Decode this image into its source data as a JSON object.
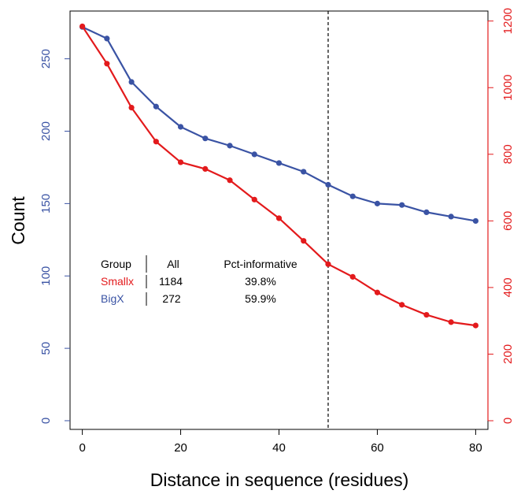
{
  "colors": {
    "left_axis": "#3a53a4",
    "right_axis": "#e31a1c",
    "bigx_series": "#3a53a4",
    "smallx_series": "#e31a1c",
    "frame": "#000000",
    "reference_line": "#000000"
  },
  "chart_data": {
    "type": "line",
    "title": "",
    "xlabel": "Distance in sequence (residues)",
    "ylabel": "Count",
    "grid": false,
    "x": [
      0,
      5,
      10,
      15,
      20,
      25,
      30,
      35,
      40,
      45,
      50,
      55,
      60,
      65,
      70,
      75,
      80
    ],
    "xlim": [
      -2.5,
      82.5
    ],
    "xticks": [
      0,
      20,
      40,
      60,
      80
    ],
    "ylim_left": [
      -6,
      283
    ],
    "yticks_left": [
      0,
      50,
      100,
      150,
      200,
      250
    ],
    "ylim_right": [
      -26,
      1230
    ],
    "yticks_right": [
      0,
      200,
      400,
      600,
      800,
      1000,
      1200
    ],
    "reference_line_x": 50,
    "series": [
      {
        "name": "BigX",
        "axis": "left",
        "values": [
          272,
          264,
          234,
          217,
          203,
          195,
          190,
          184,
          178,
          172,
          163,
          155,
          150,
          149,
          144,
          141,
          138
        ]
      },
      {
        "name": "Smallx",
        "axis": "right",
        "values": [
          1184,
          1072,
          940,
          838,
          776,
          756,
          722,
          664,
          608,
          540,
          470,
          432,
          385,
          348,
          318,
          296,
          286
        ]
      }
    ],
    "legend": {
      "placement": "left",
      "headers": [
        "Group",
        "All",
        "Pct-informative"
      ],
      "rows": [
        {
          "group": "Smallx",
          "all": "1184",
          "pct": "39.8%"
        },
        {
          "group": "BigX",
          "all": "272",
          "pct": "59.9%"
        }
      ]
    }
  }
}
